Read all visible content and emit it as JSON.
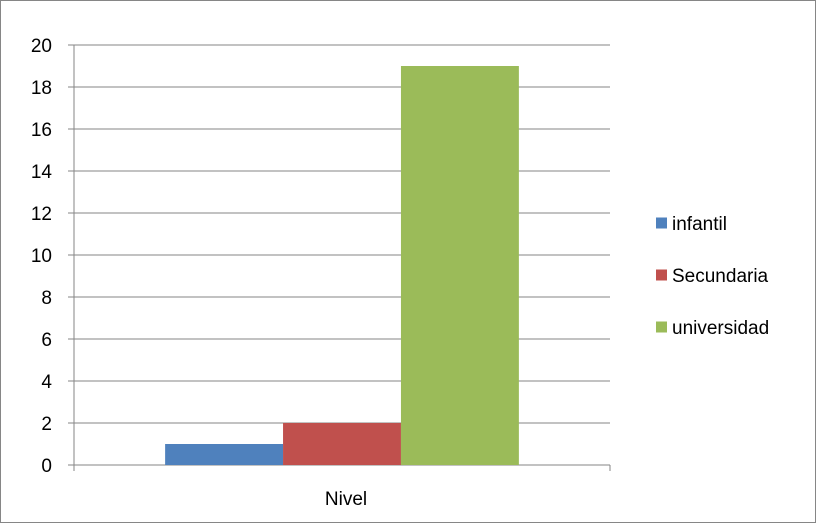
{
  "chart_data": {
    "type": "bar",
    "categories": [
      "Nivel"
    ],
    "series": [
      {
        "name": "infantil",
        "values": [
          1
        ],
        "color": "#4F81BD"
      },
      {
        "name": "Secundaria",
        "values": [
          2
        ],
        "color": "#C0504D"
      },
      {
        "name": "universidad",
        "values": [
          19
        ],
        "color": "#9BBB59"
      }
    ],
    "yticks": [
      "0",
      "2",
      "4",
      "6",
      "8",
      "10",
      "12",
      "14",
      "16",
      "18",
      "20"
    ],
    "ylim": [
      0,
      20
    ],
    "grid": true,
    "legend_position": "right"
  }
}
